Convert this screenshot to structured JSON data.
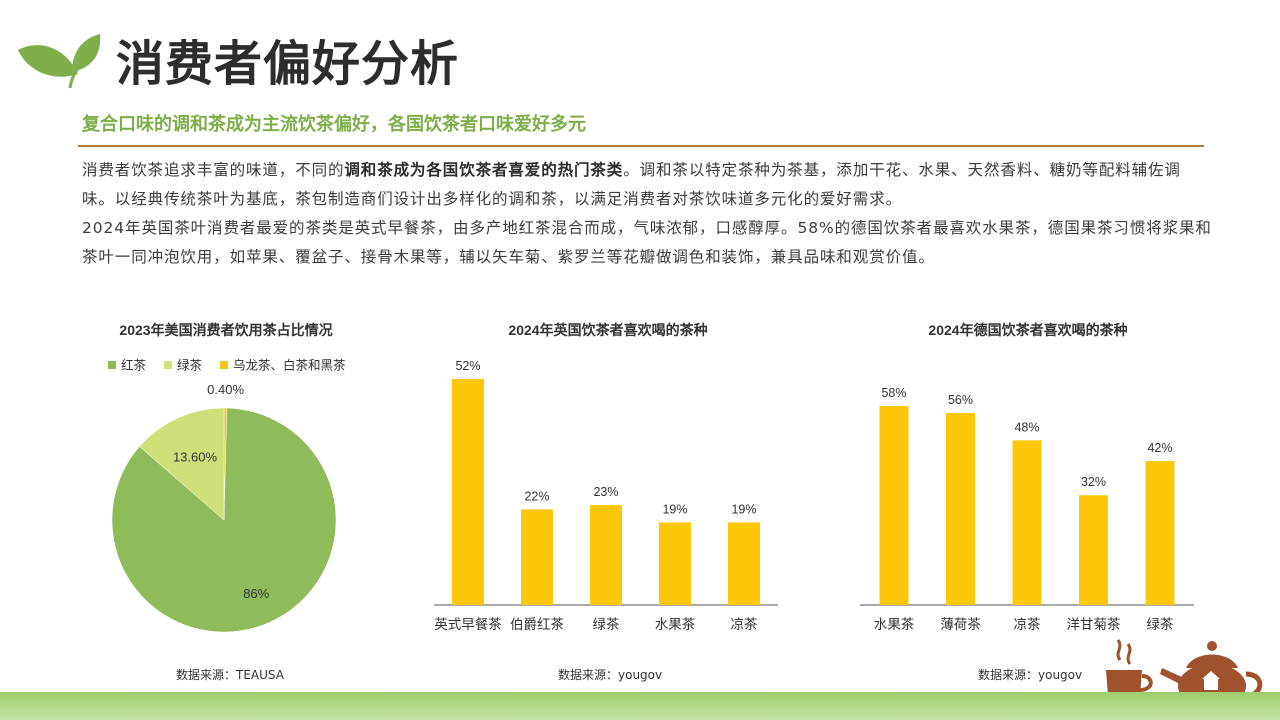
{
  "header": {
    "title": "消费者偏好分析",
    "subtitle": "复合口味的调和茶成为主流饮茶偏好，各国饮茶者口味爱好多元"
  },
  "body": {
    "p1_a": "消费者饮茶追求丰富的味道，不同的",
    "p1_bold": "调和茶成为各国饮茶者喜爱的热门茶类",
    "p1_b": "。调和茶以特定茶种为茶基，添加干花、水果、天然香料、糖奶等配料辅佐调味。以经典传统茶叶为基底，茶包制造商们设计出多样化的调和茶，以满足消费者对茶饮味道多元化的爱好需求。",
    "p2": "2024年英国茶叶消费者最爱的茶类是英式早餐茶，由多产地红茶混合而成，气味浓郁，口感醇厚。58%的德国饮茶者最喜欢水果茶，德国果茶习惯将浆果和茶叶一同冲泡饮用，如苹果、覆盆子、接骨木果等，辅以矢车菊、紫罗兰等花瓣做调色和装饰，兼具品味和观赏价值。"
  },
  "chart_data": [
    {
      "type": "pie",
      "title": "2023年美国消费者饮用茶占比情况",
      "legend_position": "top",
      "slices": [
        {
          "label": "红茶",
          "value": 86,
          "display": "86%",
          "color": "#8fbb5a"
        },
        {
          "label": "绿茶",
          "value": 13.6,
          "display": "13.60%",
          "color": "#cfe07b"
        },
        {
          "label": "乌龙茶、白茶和黑茶",
          "value": 0.4,
          "display": "0.40%",
          "color": "#f2c318"
        }
      ],
      "source": "数据来源：TEAUSA"
    },
    {
      "type": "bar",
      "title": "2024年英国饮茶者喜欢喝的茶种",
      "categories": [
        "英式早餐茶",
        "伯爵红茶",
        "绿茶",
        "水果茶",
        "凉茶"
      ],
      "values": [
        52,
        22,
        23,
        19,
        19
      ],
      "labels": [
        "52%",
        "22%",
        "23%",
        "19%",
        "19%"
      ],
      "ylim": [
        0,
        52
      ],
      "color": "#fec80a",
      "source": "数据来源：yougov"
    },
    {
      "type": "bar",
      "title": "2024年德国饮茶者喜欢喝的茶种",
      "categories": [
        "水果茶",
        "薄荷茶",
        "凉茶",
        "洋甘菊茶",
        "绿茶"
      ],
      "values": [
        58,
        56,
        48,
        32,
        42
      ],
      "labels": [
        "58%",
        "56%",
        "48%",
        "32%",
        "42%"
      ],
      "ylim": [
        0,
        58
      ],
      "color": "#fec80a",
      "source": "数据来源：yougov"
    }
  ],
  "icons": {
    "logo": "leaf-logo-icon",
    "decoration": "tea-cup-and-teapot-icon"
  },
  "colors": {
    "accent_green": "#7fae4a",
    "rule_brown": "#b27d3a",
    "bar_yellow": "#fec80a",
    "deco_brown": "#a0522d"
  }
}
